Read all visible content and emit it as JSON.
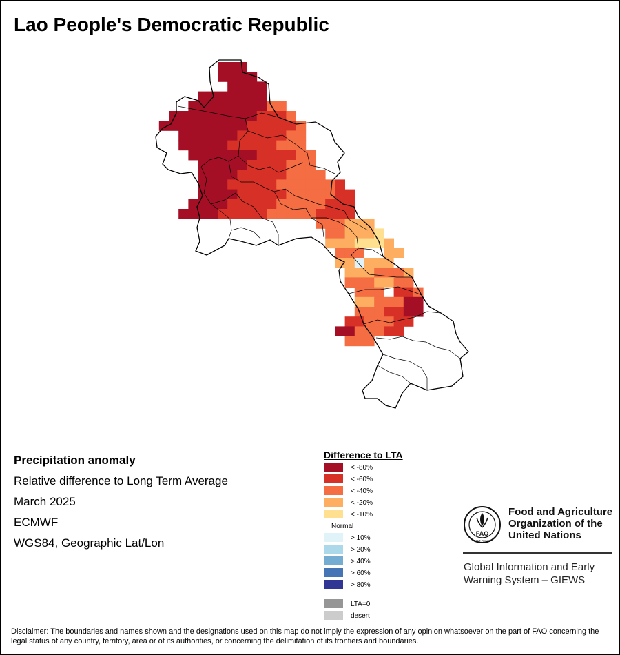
{
  "title": "Lao People's Democratic Republic",
  "info": {
    "line1": "Precipitation anomaly",
    "line2": "Relative difference to Long Term Average",
    "line3": "March 2025",
    "line4": "ECMWF",
    "line5": "WGS84, Geographic Lat/Lon"
  },
  "legend": {
    "title": "Difference to LTA",
    "classes": [
      {
        "label": "< -80%",
        "color": "#a50f26"
      },
      {
        "label": "< -60%",
        "color": "#d73027"
      },
      {
        "label": "< -40%",
        "color": "#f46d43"
      },
      {
        "label": "< -20%",
        "color": "#fdae61"
      },
      {
        "label": "< -10%",
        "color": "#fee090"
      },
      {
        "label": "Normal",
        "color": "#ffffff"
      },
      {
        "label": "> 10%",
        "color": "#e0f3f8"
      },
      {
        "label": "> 20%",
        "color": "#abd9e9"
      },
      {
        "label": "> 40%",
        "color": "#74add1"
      },
      {
        "label": "> 60%",
        "color": "#4575b4"
      },
      {
        "label": "> 80%",
        "color": "#313695"
      }
    ],
    "extra": [
      {
        "label": "LTA=0",
        "color": "#969696"
      },
      {
        "label": "desert",
        "color": "#cccccc"
      }
    ]
  },
  "organization": {
    "name_line1": "Food and Agriculture",
    "name_line2": "Organization of the",
    "name_line3": "United Nations",
    "logo_letters": "FAO",
    "logo_motto": "FIAT PANIS",
    "system_line1": "Global Information and Early",
    "system_line2": "Warning System – GIEWS"
  },
  "disclaimer": "Disclaimer: The boundaries and names shown and the designations used on this map do not imply the expression of any opinion whatsoever on the part of FAO concerning the legal status of any country, territory, area or of its authorities, or concerning the delimitation of its frontiers and boundaries.",
  "map_data": {
    "description_rows": [
      {
        "row": 0,
        "segments": [
          [
            0,
            2,
            0
          ]
        ]
      },
      {
        "row": 1,
        "segments": [
          [
            0,
            3,
            0
          ]
        ]
      },
      {
        "row": 2,
        "segments": [
          [
            1,
            4,
            0
          ]
        ]
      },
      {
        "row": 3,
        "segments": [
          [
            -2,
            4,
            0
          ]
        ]
      },
      {
        "row": 4,
        "segments": [
          [
            -3,
            4,
            0
          ],
          [
            5,
            6,
            2
          ]
        ]
      },
      {
        "row": 5,
        "segments": [
          [
            -5,
            3,
            0
          ],
          [
            4,
            6,
            1
          ],
          [
            7,
            7,
            2
          ]
        ]
      },
      {
        "row": 6,
        "segments": [
          [
            -6,
            2,
            0
          ],
          [
            3,
            7,
            1
          ],
          [
            8,
            8,
            2
          ]
        ]
      },
      {
        "row": 7,
        "segments": [
          [
            -4,
            1,
            0
          ],
          [
            2,
            6,
            1
          ],
          [
            7,
            8,
            2
          ]
        ]
      },
      {
        "row": 8,
        "segments": [
          [
            -4,
            0,
            0
          ],
          [
            1,
            5,
            1
          ],
          [
            6,
            8,
            2
          ]
        ]
      },
      {
        "row": 9,
        "segments": [
          [
            -3,
            3,
            0
          ],
          [
            4,
            7,
            1
          ],
          [
            8,
            9,
            2
          ]
        ]
      },
      {
        "row": 10,
        "segments": [
          [
            -2,
            2,
            0
          ],
          [
            3,
            6,
            1
          ],
          [
            7,
            9,
            2
          ]
        ]
      },
      {
        "row": 11,
        "segments": [
          [
            -2,
            1,
            0
          ],
          [
            2,
            6,
            1
          ],
          [
            7,
            10,
            2
          ]
        ]
      },
      {
        "row": 12,
        "segments": [
          [
            -2,
            0,
            0
          ],
          [
            1,
            5,
            1
          ],
          [
            6,
            11,
            2
          ],
          [
            12,
            12,
            1
          ]
        ]
      },
      {
        "row": 13,
        "segments": [
          [
            -2,
            1,
            0
          ],
          [
            2,
            6,
            1
          ],
          [
            7,
            11,
            2
          ],
          [
            12,
            13,
            1
          ]
        ]
      },
      {
        "row": 14,
        "segments": [
          [
            -3,
            0,
            0
          ],
          [
            1,
            5,
            1
          ],
          [
            6,
            10,
            2
          ],
          [
            11,
            13,
            1
          ]
        ]
      },
      {
        "row": 15,
        "segments": [
          [
            -4,
            -1,
            0
          ],
          [
            0,
            4,
            1
          ],
          [
            5,
            9,
            2
          ],
          [
            10,
            13,
            1
          ]
        ]
      },
      {
        "row": 16,
        "segments": [
          [
            10,
            12,
            2
          ],
          [
            13,
            15,
            3
          ]
        ]
      },
      {
        "row": 17,
        "segments": [
          [
            11,
            12,
            2
          ],
          [
            13,
            15,
            3
          ],
          [
            16,
            16,
            4
          ]
        ]
      },
      {
        "row": 18,
        "segments": [
          [
            11,
            13,
            3
          ],
          [
            14,
            16,
            4
          ],
          [
            17,
            17,
            3
          ]
        ]
      },
      {
        "row": 19,
        "segments": [
          [
            12,
            14,
            2
          ],
          [
            15,
            16,
            5
          ],
          [
            17,
            18,
            3
          ]
        ]
      },
      {
        "row": 20,
        "segments": [
          [
            12,
            13,
            3
          ],
          [
            14,
            14,
            6
          ],
          [
            15,
            17,
            3
          ],
          [
            18,
            18,
            5
          ]
        ]
      },
      {
        "row": 21,
        "segments": [
          [
            13,
            15,
            3
          ],
          [
            16,
            18,
            2
          ],
          [
            19,
            19,
            3
          ]
        ]
      },
      {
        "row": 22,
        "segments": [
          [
            13,
            15,
            2
          ],
          [
            16,
            17,
            3
          ],
          [
            18,
            19,
            2
          ]
        ]
      },
      {
        "row": 23,
        "segments": [
          [
            14,
            16,
            2
          ],
          [
            17,
            17,
            5
          ],
          [
            18,
            19,
            1
          ],
          [
            20,
            20,
            2
          ]
        ]
      },
      {
        "row": 24,
        "segments": [
          [
            14,
            15,
            3
          ],
          [
            16,
            18,
            2
          ],
          [
            19,
            20,
            0
          ]
        ]
      },
      {
        "row": 25,
        "segments": [
          [
            14,
            16,
            2
          ],
          [
            17,
            18,
            1
          ],
          [
            19,
            20,
            0
          ]
        ]
      },
      {
        "row": 26,
        "segments": [
          [
            13,
            14,
            1
          ],
          [
            15,
            17,
            2
          ],
          [
            18,
            19,
            1
          ]
        ]
      },
      {
        "row": 27,
        "segments": [
          [
            12,
            13,
            0
          ],
          [
            14,
            16,
            2
          ],
          [
            17,
            18,
            1
          ]
        ]
      },
      {
        "row": 28,
        "segments": [
          [
            13,
            15,
            2
          ]
        ]
      }
    ]
  }
}
